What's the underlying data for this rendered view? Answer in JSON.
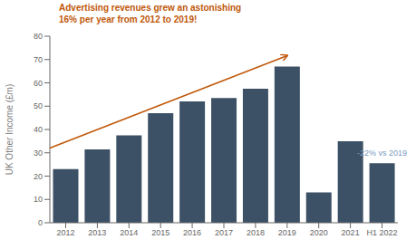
{
  "chart_data": {
    "type": "bar",
    "categories": [
      "2012",
      "2013",
      "2014",
      "2015",
      "2016",
      "2017",
      "2018",
      "2019",
      "2020",
      "2021",
      "H1 2022"
    ],
    "values": [
      23,
      31.5,
      37.5,
      47,
      52,
      53.5,
      57.5,
      67,
      13,
      35,
      25.5
    ],
    "color": "#3d5166",
    "ylabel": "UK Other Income (£m)",
    "ylim": [
      0,
      80
    ],
    "yticks": [
      0,
      10,
      20,
      30,
      40,
      50,
      60,
      70,
      80
    ],
    "grid": false,
    "annotations": [
      {
        "text": "Advertising revenues grew an astonishing\n16% per year from 2012 to 2019!",
        "color": "#c0580a"
      },
      {
        "text": "-22% vs 2019",
        "color": "#7a9abf"
      }
    ]
  }
}
